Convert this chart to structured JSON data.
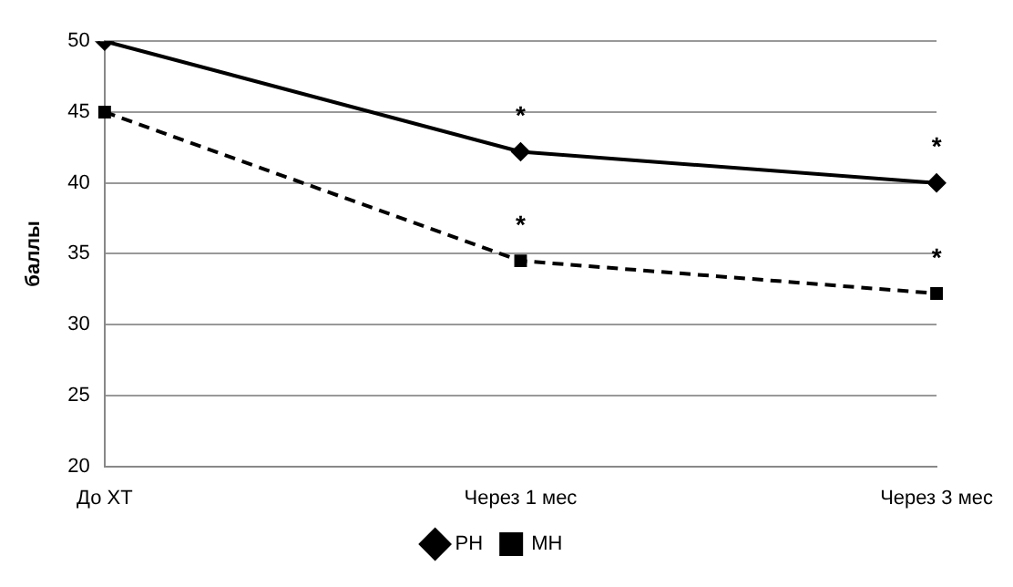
{
  "chart_data": {
    "type": "line",
    "ylabel": "баллы",
    "categories": [
      "До ХТ",
      "Через 1 мес",
      "Через 3 мес"
    ],
    "series": [
      {
        "name": "РН",
        "color": "#000000",
        "values": [
          50,
          42.2,
          40
        ],
        "marker": "diamond",
        "line_style": "solid"
      },
      {
        "name": "МН",
        "color": "#000000",
        "values": [
          45,
          34.5,
          32.2
        ],
        "marker": "square",
        "line_style": "dashed"
      }
    ],
    "ylim": [
      20,
      50
    ],
    "yticks": [
      20,
      25,
      30,
      35,
      40,
      45,
      50
    ],
    "grid": "y",
    "legend": "bottom",
    "annotations": [
      {
        "text": "*",
        "x": "Через 1 мес",
        "y": 42.2
      },
      {
        "text": "*",
        "x": "Через 3 мес",
        "y": 40
      },
      {
        "text": "*",
        "x": "Через 1 мес",
        "y": 34.5
      },
      {
        "text": "*",
        "x": "Через 3 мес",
        "y": 32.2
      }
    ]
  }
}
